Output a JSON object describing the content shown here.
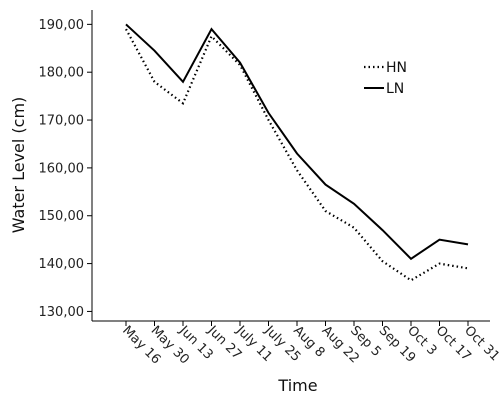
{
  "chart_data": {
    "type": "line",
    "categories": [
      "May 16",
      "May 30",
      "Jun 13",
      "Jun 27",
      "July 11",
      "July 25",
      "Aug 8",
      "Aug 22",
      "Sep 5",
      "Sep 19",
      "Oct 3",
      "Oct 17",
      "Oct 31"
    ],
    "series": [
      {
        "name": "HN",
        "style": "dotted",
        "values": [
          189.0,
          178.0,
          173.5,
          187.5,
          181.5,
          170.0,
          159.5,
          151.0,
          147.5,
          140.5,
          136.5,
          140.0,
          139.0
        ]
      },
      {
        "name": "LN",
        "style": "solid",
        "values": [
          190.0,
          184.5,
          178.0,
          189.0,
          182.0,
          171.5,
          163.0,
          156.5,
          152.5,
          147.0,
          141.0,
          145.0,
          144.0
        ]
      }
    ],
    "xlabel": "Time",
    "ylabel": "Water Level (cm)",
    "ylim": [
      128,
      193
    ],
    "yticks": [
      "130,00",
      "140,00",
      "150,00",
      "160,00",
      "170,00",
      "180,00",
      "190,00"
    ],
    "legend_position": "top-right",
    "grid": false,
    "line_color": "#000000"
  }
}
